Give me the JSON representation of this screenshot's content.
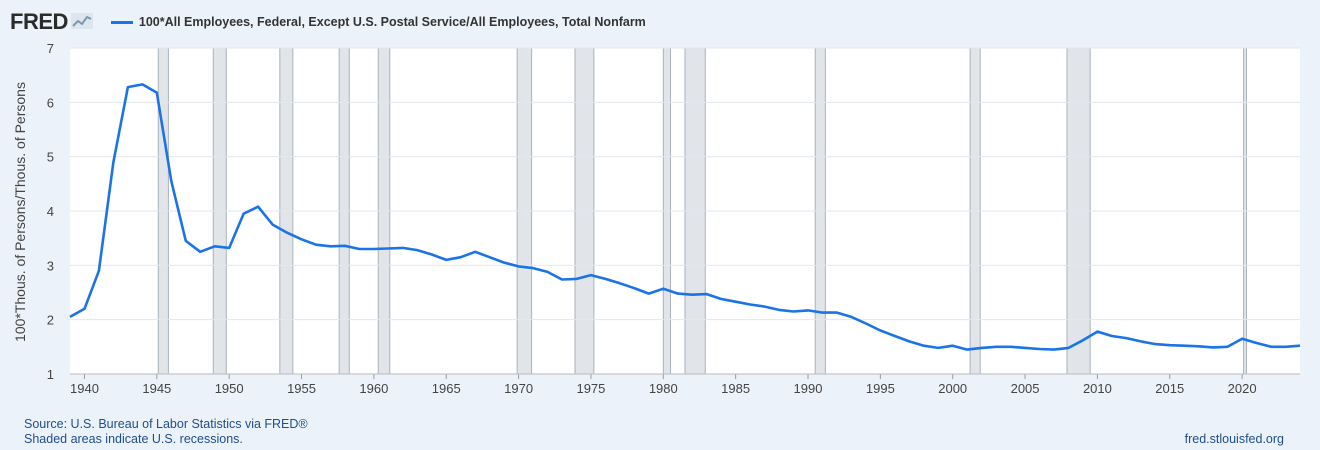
{
  "header": {
    "logo_text": "FRED",
    "logo_icon": "line-chart-icon",
    "legend_label": "100*All Employees, Federal, Except U.S. Postal Service/All Employees, Total Nonfarm"
  },
  "footer": {
    "source": "Source: U.S. Bureau of Labor Statistics via FRED®",
    "recessions_note": "Shaded areas indicate U.S. recessions.",
    "site": "fred.stlouisfed.org"
  },
  "colors": {
    "line": "#1a73e8",
    "background": "#ecf2f9",
    "plot_bg": "#ffffff",
    "grid": "#e3e8ee",
    "recession": "#e1e5ea"
  },
  "chart_data": {
    "type": "line",
    "ylabel": "100*Thous. of Persons/Thous. of Persons",
    "xlabel": "",
    "xlim": [
      1939.0,
      2024.0
    ],
    "ylim": [
      1,
      7
    ],
    "yticks": [
      1,
      2,
      3,
      4,
      5,
      6,
      7
    ],
    "xticks": [
      1940,
      1945,
      1950,
      1955,
      1960,
      1965,
      1970,
      1975,
      1980,
      1985,
      1990,
      1995,
      2000,
      2005,
      2010,
      2015,
      2020
    ],
    "grid": true,
    "recessions": [
      [
        1945.1,
        1945.8
      ],
      [
        1948.9,
        1949.8
      ],
      [
        1953.5,
        1954.4
      ],
      [
        1957.6,
        1958.3
      ],
      [
        1960.3,
        1961.1
      ],
      [
        1969.9,
        1970.9
      ],
      [
        1973.9,
        1975.2
      ],
      [
        1980.0,
        1980.5
      ],
      [
        1981.5,
        1982.9
      ],
      [
        1990.5,
        1991.2
      ],
      [
        2001.2,
        2001.9
      ],
      [
        2007.9,
        2009.5
      ],
      [
        2020.1,
        2020.3
      ]
    ],
    "series": [
      {
        "x": [
          1939,
          1940,
          1941,
          1942,
          1943,
          1944,
          1945,
          1946,
          1947,
          1948,
          1949,
          1950,
          1951,
          1952,
          1953,
          1954,
          1955,
          1956,
          1957,
          1958,
          1959,
          1960,
          1961,
          1962,
          1963,
          1964,
          1965,
          1966,
          1967,
          1968,
          1969,
          1970,
          1971,
          1972,
          1973,
          1974,
          1975,
          1976,
          1977,
          1978,
          1979,
          1980,
          1981,
          1982,
          1983,
          1984,
          1985,
          1986,
          1987,
          1988,
          1989,
          1990,
          1991,
          1992,
          1993,
          1994,
          1995,
          1996,
          1997,
          1998,
          1999,
          2000,
          2001,
          2002,
          2003,
          2004,
          2005,
          2006,
          2007,
          2008,
          2009,
          2010,
          2011,
          2012,
          2013,
          2014,
          2015,
          2016,
          2017,
          2018,
          2019,
          2020,
          2021,
          2022,
          2023,
          2024
        ],
        "y": [
          2.05,
          2.2,
          2.9,
          4.9,
          6.28,
          6.33,
          6.18,
          4.55,
          3.45,
          3.25,
          3.35,
          3.32,
          3.95,
          4.08,
          3.75,
          3.6,
          3.48,
          3.38,
          3.35,
          3.36,
          3.3,
          3.3,
          3.31,
          3.32,
          3.28,
          3.2,
          3.1,
          3.15,
          3.25,
          3.15,
          3.05,
          2.98,
          2.95,
          2.88,
          2.74,
          2.75,
          2.82,
          2.75,
          2.67,
          2.58,
          2.48,
          2.57,
          2.48,
          2.46,
          2.47,
          2.38,
          2.33,
          2.28,
          2.24,
          2.18,
          2.15,
          2.17,
          2.13,
          2.13,
          2.05,
          1.93,
          1.8,
          1.7,
          1.6,
          1.52,
          1.48,
          1.52,
          1.45,
          1.48,
          1.5,
          1.5,
          1.48,
          1.46,
          1.45,
          1.48,
          1.62,
          1.78,
          1.7,
          1.66,
          1.6,
          1.55,
          1.53,
          1.52,
          1.51,
          1.49,
          1.5,
          1.65,
          1.57,
          1.5,
          1.5,
          1.52
        ]
      }
    ]
  }
}
